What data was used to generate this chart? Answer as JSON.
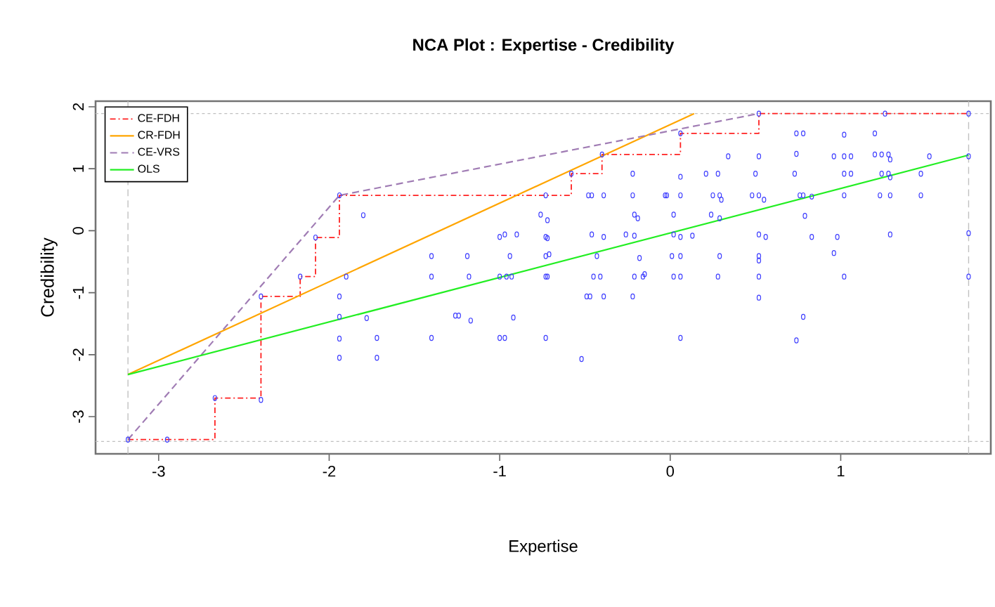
{
  "chart_data": {
    "type": "scatter",
    "title": "NCA Plot : Expertise - Credibility",
    "xlabel": "Expertise",
    "ylabel": "Credibility",
    "xlim": [
      -3.37,
      1.88
    ],
    "ylim": [
      -3.6,
      2.09
    ],
    "xticks": [
      -3,
      -2,
      -1,
      0,
      1
    ],
    "yticks": [
      -3,
      -2,
      -1,
      0,
      1,
      2
    ],
    "grid": false,
    "legend": "top left",
    "series": [
      {
        "marker": "circle",
        "color": "#3b3bff",
        "x": [
          -3.18,
          -2.95,
          -2.67,
          -2.4,
          -2.4,
          -2.17,
          -2.08,
          -1.94,
          -1.8,
          -1.9,
          -1.94,
          -1.94,
          -1.94,
          -1.94,
          -1.78,
          -1.72,
          -1.72,
          -1.4,
          -1.4,
          -1.4,
          -1.19,
          -1.18,
          -1.26,
          -1.24,
          -1.17,
          -1.0,
          -0.97,
          -0.9,
          -0.94,
          -1.0,
          -0.96,
          -0.93,
          -0.92,
          -1.0,
          -0.97,
          -0.76,
          -0.73,
          -0.73,
          -0.73,
          -0.73,
          -0.73,
          -0.58,
          -0.4,
          0.06,
          0.52,
          1.26,
          1.75,
          -0.72,
          -0.72,
          -0.71,
          -0.72,
          -0.52,
          -0.48,
          -0.46,
          -0.39,
          -0.46,
          -0.39,
          -0.43,
          -0.45,
          -0.41,
          -0.49,
          -0.47,
          -0.39,
          -0.22,
          -0.22,
          -0.21,
          -0.19,
          -0.26,
          -0.21,
          -0.18,
          -0.21,
          -0.16,
          -0.15,
          -0.22,
          -0.03,
          -0.02,
          0.06,
          0.06,
          0.02,
          0.02,
          0.06,
          0.13,
          0.01,
          0.06,
          0.02,
          0.06,
          0.06,
          0.21,
          0.28,
          0.25,
          0.29,
          0.3,
          0.24,
          0.29,
          0.29,
          0.28,
          0.34,
          0.48,
          0.52,
          0.55,
          0.5,
          0.52,
          0.52,
          0.56,
          0.52,
          0.52,
          0.52,
          0.52,
          0.74,
          0.78,
          0.74,
          0.73,
          0.76,
          0.78,
          0.83,
          0.79,
          0.83,
          0.78,
          0.74,
          0.96,
          1.02,
          1.06,
          1.02,
          1.02,
          1.06,
          1.02,
          0.98,
          0.96,
          1.02,
          1.2,
          1.2,
          1.24,
          1.28,
          1.29,
          1.24,
          1.28,
          1.29,
          1.23,
          1.29,
          1.29,
          1.47,
          1.47,
          1.52,
          1.75,
          1.75,
          1.75
        ],
        "values": [
          -3.37,
          -3.37,
          -2.7,
          -2.73,
          -1.06,
          -0.74,
          -0.11,
          0.57,
          0.25,
          -0.74,
          -1.06,
          -1.39,
          -1.74,
          -2.05,
          -1.41,
          -1.73,
          -2.05,
          -0.41,
          -0.74,
          -1.73,
          -0.41,
          -0.74,
          -1.37,
          -1.37,
          -1.45,
          -0.1,
          -0.06,
          -0.06,
          -0.41,
          -0.74,
          -0.74,
          -0.74,
          -1.4,
          -1.73,
          -1.73,
          0.26,
          0.57,
          -0.1,
          -0.41,
          -0.74,
          -1.73,
          0.92,
          1.23,
          1.57,
          1.89,
          1.89,
          1.89,
          0.17,
          -0.12,
          -0.38,
          -0.74,
          -2.07,
          0.57,
          0.57,
          0.57,
          -0.06,
          -0.1,
          -0.41,
          -0.74,
          -0.74,
          -1.06,
          -1.06,
          -1.06,
          0.92,
          0.57,
          0.26,
          0.2,
          -0.06,
          -0.08,
          -0.44,
          -0.74,
          -0.74,
          -0.7,
          -1.06,
          0.57,
          0.57,
          0.87,
          0.57,
          0.26,
          -0.06,
          -0.1,
          -0.08,
          -0.41,
          -0.41,
          -0.74,
          -0.74,
          -1.73,
          0.92,
          0.92,
          0.57,
          0.57,
          0.5,
          0.26,
          0.2,
          -0.41,
          -0.74,
          1.2,
          0.57,
          0.57,
          0.5,
          0.92,
          1.2,
          -0.06,
          -0.1,
          -0.41,
          -0.48,
          -0.74,
          -1.08,
          1.57,
          1.57,
          1.24,
          0.92,
          0.57,
          0.57,
          0.55,
          0.24,
          -0.1,
          -1.39,
          -1.77,
          1.2,
          1.2,
          1.2,
          1.55,
          0.92,
          0.92,
          0.57,
          -0.1,
          -0.36,
          -0.74,
          1.57,
          1.23,
          1.23,
          1.23,
          1.15,
          0.92,
          0.92,
          0.86,
          0.57,
          0.57,
          -0.06,
          0.92,
          0.57,
          1.2,
          1.2,
          -0.04,
          -0.74
        ]
      },
      {
        "type": "step",
        "name": "CE-FDH",
        "marker": "none",
        "color": "#ff2020",
        "line_style": "dashdot",
        "x": [
          -3.18,
          -2.67,
          -2.4,
          -2.17,
          -2.08,
          -1.94,
          -0.58,
          -0.4,
          0.06,
          0.52,
          1.75
        ],
        "values": [
          -3.37,
          -2.7,
          -1.06,
          -0.74,
          -0.11,
          0.57,
          0.92,
          1.23,
          1.57,
          1.89,
          1.89
        ]
      },
      {
        "type": "line",
        "name": "CR-FDH",
        "marker": "none",
        "color": "#ffa500",
        "line_style": "solid",
        "x": [
          -3.18,
          0.14
        ],
        "values": [
          -2.32,
          1.89
        ]
      },
      {
        "type": "line",
        "name": "CE-VRS",
        "marker": "none",
        "color": "#a07cb4",
        "line_style": "dashed",
        "x": [
          -3.18,
          -1.94,
          0.52
        ],
        "values": [
          -3.37,
          0.57,
          1.89
        ]
      },
      {
        "type": "line",
        "name": "OLS",
        "marker": "none",
        "color": "#22ee22",
        "line_style": "solid",
        "x": [
          -3.18,
          1.75
        ],
        "values": [
          -2.32,
          1.22
        ]
      }
    ],
    "ref_lines": [
      {
        "axis": "x",
        "value": -3.18,
        "color": "#c0c0c0",
        "line_style": "dashed"
      },
      {
        "axis": "x",
        "value": 1.75,
        "color": "#c0c0c0",
        "line_style": "dashed"
      },
      {
        "axis": "y",
        "value": 1.89,
        "color": "#c0c0c0",
        "line_style": "dotted"
      },
      {
        "axis": "y",
        "value": -3.4,
        "color": "#c0c0c0",
        "line_style": "dotted"
      }
    ]
  }
}
